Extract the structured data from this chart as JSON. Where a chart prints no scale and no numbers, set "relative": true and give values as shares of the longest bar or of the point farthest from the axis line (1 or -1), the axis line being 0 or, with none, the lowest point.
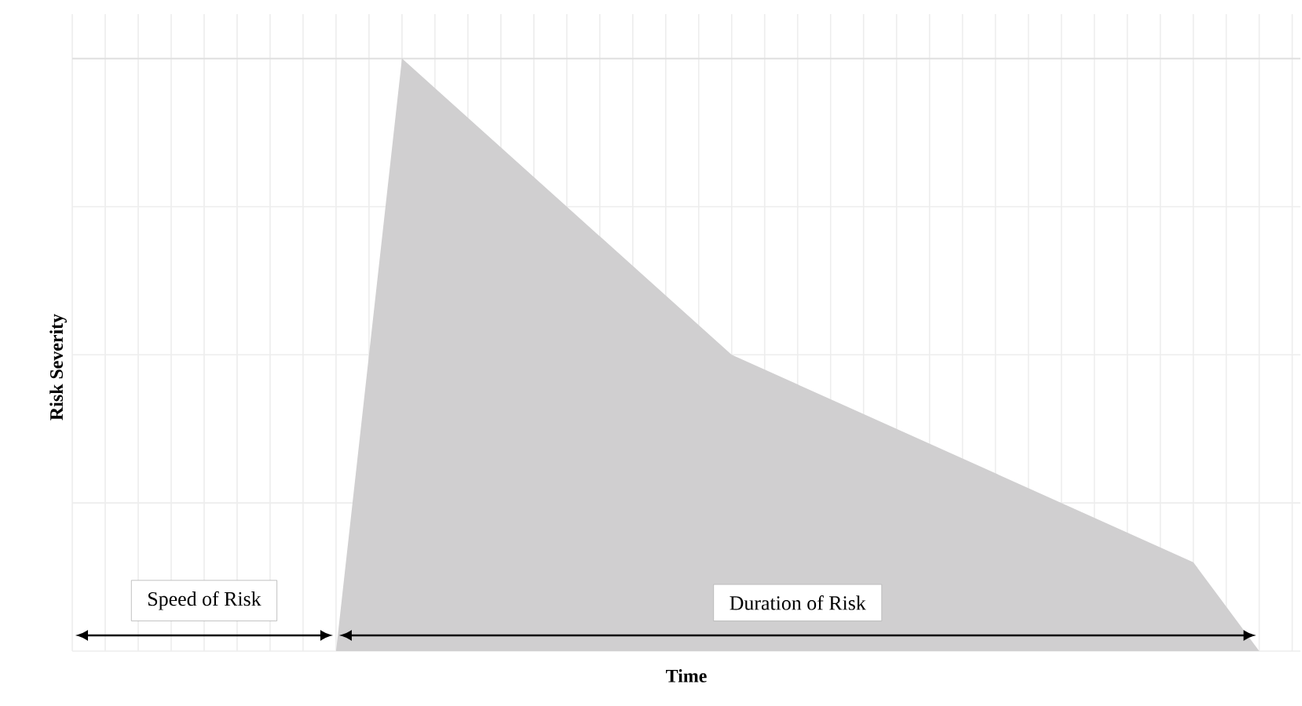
{
  "chart_data": {
    "type": "area",
    "relative": true,
    "xlabel": "Time",
    "ylabel": "Risk Severity",
    "categories": [
      null,
      null,
      null,
      null,
      null,
      null,
      null,
      null,
      null,
      null,
      null,
      null,
      null,
      null,
      null,
      null,
      null,
      null,
      null,
      null,
      null,
      null,
      null,
      null,
      null,
      null,
      null,
      null,
      null,
      null,
      null,
      null,
      null,
      null,
      null,
      null,
      null,
      null
    ],
    "series": [
      {
        "color": "#d0cfd0",
        "values": [
          null,
          null,
          null,
          null,
          null,
          null,
          null,
          null,
          0,
          null,
          1,
          null,
          null,
          null,
          null,
          null,
          null,
          null,
          null,
          null,
          0.5,
          null,
          null,
          null,
          null,
          null,
          null,
          null,
          null,
          null,
          null,
          null,
          null,
          null,
          0.15,
          null,
          0,
          null
        ]
      }
    ],
    "annotations": [
      "Speed of Risk",
      "Duration of Risk"
    ],
    "grid": true
  }
}
